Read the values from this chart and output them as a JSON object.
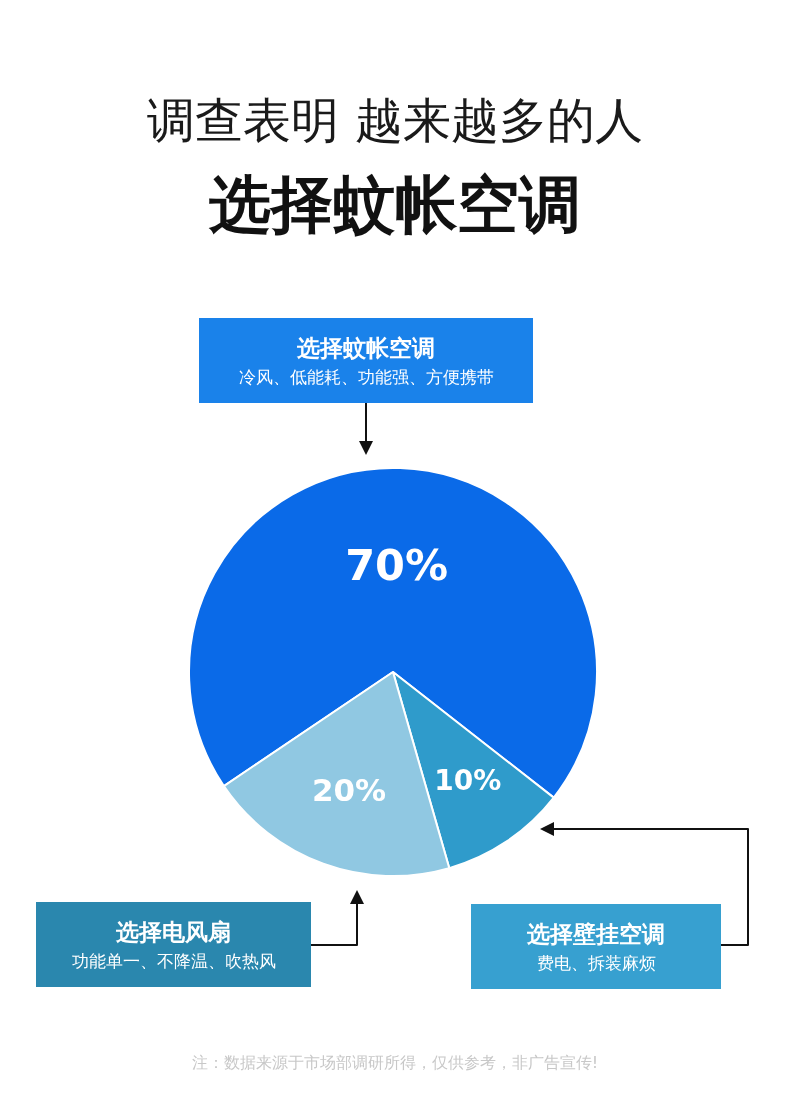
{
  "chart_data": {
    "type": "pie",
    "title": "调查表明 越来越多的人",
    "subtitle": "选择蚊帐空调",
    "categories": [
      "选择蚊帐空调",
      "选择壁挂空调",
      "选择电风扇"
    ],
    "values": [
      70,
      10,
      20
    ],
    "colors": [
      "#0a6ae8",
      "#2f9bcb",
      "#90c8e2"
    ],
    "value_labels": [
      "70%",
      "10%",
      "20%"
    ],
    "annotations": [
      "冷风、低能耗、功能强、方便携带",
      "费电、拆装麻烦",
      "功能单一、不降温、吹热风",
      "注：数据来源于市场部调研所得，仅供参考，非广告宣传!"
    ]
  }
}
